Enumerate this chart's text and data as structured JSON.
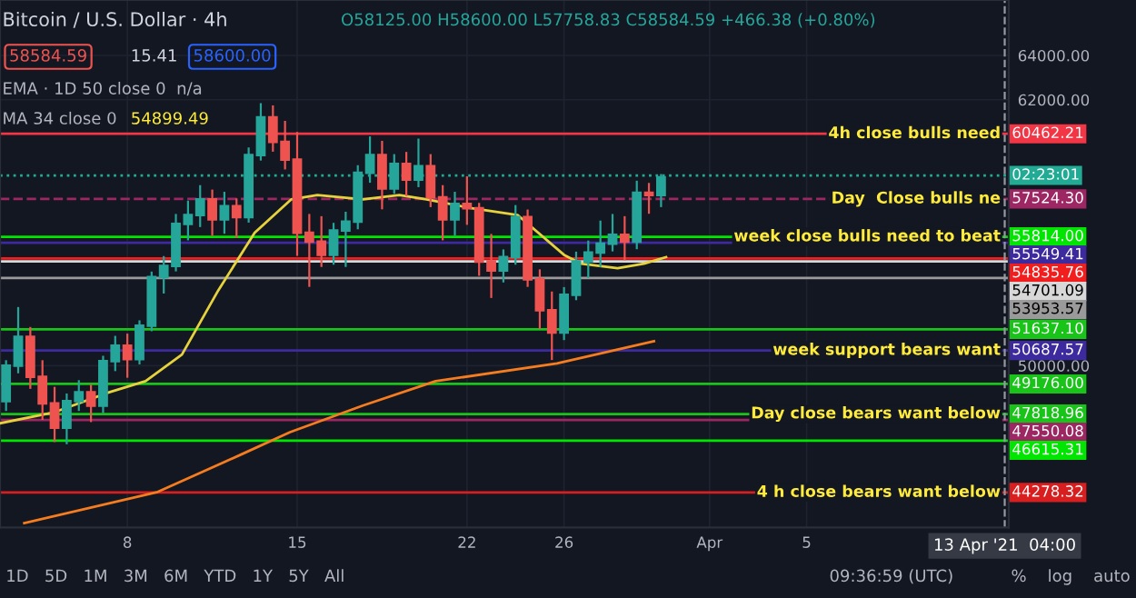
{
  "chart_data": {
    "type": "candlestick",
    "title": "Bitcoin / U.S. Dollar · 4h",
    "annotations": [
      "O58125.00 H58600.00 L57758.83 C58584.59 +466.38 (+0.80%)",
      "58584.59",
      "15.41",
      "58600.00",
      "EMA · 1D 50 close 0  n/a",
      "MA 34 close 0",
      "54899.49",
      "1D   5D   1M   3M   6M   YTD   1Y   5Y   All",
      "09:36:59 (UTC)",
      "%    log    auto",
      {
        "text": "4h close bulls need",
        "x": "2021-04-13T00:00",
        "y": 60462.21
      },
      {
        "text": "02:23:01",
        "x": "2021-04-13T08:00",
        "y": 58584.59
      },
      {
        "text": "Day  Close bulls ne",
        "x": "2021-04-13T00:00",
        "y": 57524.3
      },
      {
        "text": "week close bulls need to beat",
        "x": "2021-04-13T00:00",
        "y": 55814
      },
      {
        "text": "week support bears want",
        "x": "2021-04-13T00:00",
        "y": 50687.57
      },
      {
        "text": "Day close bears want below",
        "x": "2021-04-13T00:00",
        "y": 47818.96
      },
      {
        "text": "4 h close bears want below",
        "x": "2021-04-13T00:00",
        "y": 44278.32
      }
    ],
    "x": [
      "2021-03-03T00:00",
      "2021-03-03T12:00",
      "2021-03-04T00:00",
      "2021-03-04T12:00",
      "2021-03-05T00:00",
      "2021-03-05T12:00",
      "2021-03-06T00:00",
      "2021-03-06T12:00",
      "2021-03-07T00:00",
      "2021-03-07T12:00",
      "2021-03-08T00:00",
      "2021-03-08T12:00",
      "2021-03-09T00:00",
      "2021-03-09T12:00",
      "2021-03-10T00:00",
      "2021-03-10T12:00",
      "2021-03-11T00:00",
      "2021-03-11T12:00",
      "2021-03-12T00:00",
      "2021-03-12T12:00",
      "2021-03-13T00:00",
      "2021-03-13T12:00",
      "2021-03-14T00:00",
      "2021-03-14T12:00",
      "2021-03-15T00:00",
      "2021-03-15T12:00",
      "2021-03-16T00:00",
      "2021-03-16T12:00",
      "2021-03-17T00:00",
      "2021-03-17T12:00",
      "2021-03-18T00:00",
      "2021-03-18T12:00",
      "2021-03-19T00:00",
      "2021-03-19T12:00",
      "2021-03-20T00:00",
      "2021-03-20T12:00",
      "2021-03-21T00:00",
      "2021-03-21T12:00",
      "2021-03-22T00:00",
      "2021-03-22T12:00",
      "2021-03-23T00:00",
      "2021-03-23T12:00",
      "2021-03-24T00:00",
      "2021-03-24T12:00",
      "2021-03-25T00:00",
      "2021-03-25T12:00",
      "2021-03-26T00:00",
      "2021-03-26T12:00",
      "2021-03-27T00:00",
      "2021-03-27T12:00",
      "2021-03-28T00:00",
      "2021-03-28T12:00",
      "2021-03-29T00:00",
      "2021-03-29T12:00",
      "2021-03-30T00:00"
    ],
    "ohlc": [
      [
        48400,
        50200,
        48000,
        50000
      ],
      [
        50000,
        52600,
        49700,
        51300
      ],
      [
        51300,
        51700,
        49000,
        49500
      ],
      [
        49500,
        50200,
        47600,
        48300
      ],
      [
        48300,
        49000,
        46600,
        47200
      ],
      [
        47200,
        48700,
        46500,
        48400
      ],
      [
        48400,
        49300,
        48000,
        48800
      ],
      [
        48800,
        49100,
        47500,
        48200
      ],
      [
        48200,
        50400,
        47900,
        50200
      ],
      [
        50200,
        51300,
        49800,
        50900
      ],
      [
        50900,
        51400,
        49500,
        50300
      ],
      [
        50300,
        52000,
        50100,
        51800
      ],
      [
        51800,
        54200,
        51600,
        54000
      ],
      [
        54000,
        54900,
        53300,
        54500
      ],
      [
        54500,
        56800,
        54300,
        56400
      ],
      [
        56400,
        57400,
        55700,
        56800
      ],
      [
        56800,
        58100,
        56300,
        57500
      ],
      [
        57500,
        57900,
        55900,
        56600
      ],
      [
        56600,
        57800,
        56000,
        57200
      ],
      [
        57200,
        57500,
        55800,
        56700
      ],
      [
        56700,
        59800,
        56500,
        59500
      ],
      [
        59500,
        61800,
        59300,
        61200
      ],
      [
        61200,
        61700,
        59700,
        60100
      ],
      [
        60100,
        61000,
        58900,
        59300
      ],
      [
        59300,
        60500,
        55000,
        56000
      ],
      [
        56000,
        56800,
        53600,
        55600
      ],
      [
        55600,
        56700,
        54500,
        55000
      ],
      [
        55000,
        56400,
        54600,
        56100
      ],
      [
        56100,
        56900,
        54500,
        56500
      ],
      [
        56500,
        59000,
        56200,
        58700
      ],
      [
        58700,
        60300,
        58300,
        59500
      ],
      [
        59500,
        60100,
        57100,
        58000
      ],
      [
        58000,
        59500,
        57800,
        59100
      ],
      [
        59100,
        59600,
        57700,
        58400
      ],
      [
        58400,
        60200,
        58100,
        59000
      ],
      [
        59000,
        59500,
        57200,
        57600
      ],
      [
        57600,
        58100,
        55700,
        56600
      ],
      [
        56600,
        57800,
        55900,
        57300
      ],
      [
        57300,
        58500,
        56400,
        57100
      ],
      [
        57100,
        57300,
        54100,
        54700
      ],
      [
        54700,
        55900,
        53100,
        54300
      ],
      [
        54300,
        55200,
        53800,
        54900
      ],
      [
        54900,
        57200,
        54600,
        56700
      ],
      [
        56700,
        57000,
        53600,
        53900
      ],
      [
        53900,
        54300,
        51700,
        52500
      ],
      [
        52500,
        53300,
        50300,
        51500
      ],
      [
        51500,
        53500,
        51200,
        53200
      ],
      [
        53200,
        55100,
        53000,
        54700
      ],
      [
        54700,
        55600,
        54000,
        55100
      ],
      [
        55100,
        56500,
        54500,
        55500
      ],
      [
        55500,
        56800,
        55200,
        55900
      ],
      [
        55900,
        56700,
        54800,
        55600
      ],
      [
        55600,
        58300,
        55300,
        57800
      ],
      [
        57800,
        58200,
        56900,
        57700
      ],
      [
        57700,
        58600,
        57200,
        58500
      ]
    ],
    "colors": [
      "#26a69a",
      "#26a69a",
      "#ef5350",
      "#ef5350",
      "#ef5350",
      "#26a69a",
      "#26a69a",
      "#ef5350",
      "#26a69a",
      "#26a69a",
      "#ef5350",
      "#26a69a",
      "#26a69a",
      "#26a69a",
      "#26a69a",
      "#26a69a",
      "#26a69a",
      "#ef5350",
      "#26a69a",
      "#ef5350",
      "#26a69a",
      "#26a69a",
      "#ef5350",
      "#ef5350",
      "#ef5350",
      "#ef5350",
      "#ef5350",
      "#26a69a",
      "#26a69a",
      "#26a69a",
      "#26a69a",
      "#ef5350",
      "#26a69a",
      "#ef5350",
      "#26a69a",
      "#ef5350",
      "#ef5350",
      "#26a69a",
      "#ef5350",
      "#ef5350",
      "#ef5350",
      "#26a69a",
      "#26a69a",
      "#ef5350",
      "#ef5350",
      "#ef5350",
      "#26a69a",
      "#26a69a",
      "#26a69a",
      "#26a69a",
      "#26a69a",
      "#ef5350",
      "#26a69a",
      "#ef5350",
      "#26a69a"
    ],
    "series": [
      {
        "type": "line",
        "color": "#e6d23c",
        "x": [
          "2021-03-02T18:00",
          "2021-03-05T00:00",
          "2021-03-07T06:00",
          "2021-03-08T18:00",
          "2021-03-10T06:00",
          "2021-03-11T18:00",
          "2021-03-13T06:00",
          "2021-03-14T18:00",
          "2021-03-15T20:00",
          "2021-03-17T17:00",
          "2021-03-19T05:00",
          "2021-03-20T08:00",
          "2021-03-22T05:00",
          "2021-03-24T02:00",
          "2021-03-26T00:00",
          "2021-03-26T17:00",
          "2021-03-28T05:00",
          "2021-03-29T07:00",
          "2021-03-30T05:00"
        ],
        "values": [
          47400,
          47900,
          48800,
          49300,
          50500,
          53400,
          56000,
          57500,
          57700,
          57500,
          57700,
          57500,
          57100,
          56800,
          55000,
          54600,
          54400,
          54600,
          54900
        ]
      },
      {
        "type": "line",
        "color": "#f57c1f",
        "x": [
          "2021-03-03T18:00",
          "2021-03-09T06:00",
          "2021-03-12T17:00",
          "2021-03-14T17:00",
          "2021-03-17T17:00",
          "2021-03-20T17:00",
          "2021-03-25T17:00",
          "2021-03-29T17:00"
        ],
        "values": [
          42900,
          44300,
          46000,
          47000,
          48200,
          49300,
          50100,
          51100
        ]
      }
    ],
    "ref_lines": [
      {
        "axis": "y",
        "value": 60462.21,
        "label": "60462.21",
        "color": "#f23645"
      },
      {
        "axis": "y",
        "value": 58584.59,
        "color": "#22ab94",
        "line_style": "dotted"
      },
      {
        "axis": "y",
        "value": 57524.3,
        "label": "57524.30",
        "color": "#9c2763",
        "line_style": "dashed"
      },
      {
        "axis": "y",
        "value": 55814.0,
        "label": "55814.00",
        "color": "#00e600"
      },
      {
        "axis": "y",
        "value": 55549.41,
        "label": "55549.41",
        "color": "#3c2a9e"
      },
      {
        "axis": "y",
        "value": 54835.76,
        "label": "54835.76",
        "color": "#f21e1e"
      },
      {
        "axis": "y",
        "value": 54701.09,
        "label": "54701.09",
        "color": "#d8d8d8"
      },
      {
        "axis": "y",
        "value": 53953.57,
        "label": "53953.57",
        "color": "#9a9a9a"
      },
      {
        "axis": "y",
        "value": 51637.1,
        "label": "51637.10",
        "color": "#18c418"
      },
      {
        "axis": "y",
        "value": 50687.57,
        "label": "50687.57",
        "color": "#3c2a9e"
      },
      {
        "axis": "y",
        "value": 49176.0,
        "label": "49176.00",
        "color": "#18c418"
      },
      {
        "axis": "y",
        "value": 47818.96,
        "label": "47818.96",
        "color": "#18c418"
      },
      {
        "axis": "y",
        "value": 47550.08,
        "label": "47550.08",
        "color": "#9c2763"
      },
      {
        "axis": "y",
        "value": 46615.31,
        "label": "46615.31",
        "color": "#00e600"
      },
      {
        "axis": "y",
        "value": 44278.32,
        "label": "44278.32",
        "color": "#d81e1e"
      },
      {
        "axis": "x",
        "value": "2021-04-13T04:00",
        "label": "13 Apr '21  04:00",
        "color": "#9598a1",
        "line_style": "dashed"
      }
    ],
    "xlim": [
      "2021-03-02T18:00",
      "2021-04-13T08:00"
    ],
    "xticks": [
      {
        "value": "2021-03-08",
        "label": "8"
      },
      {
        "value": "2021-03-15",
        "label": "15"
      },
      {
        "value": "2021-03-22",
        "label": "22"
      },
      {
        "value": "2021-03-26",
        "label": "26"
      },
      {
        "value": "2021-04-01",
        "label": "Apr"
      },
      {
        "value": "2021-04-05",
        "label": "5"
      }
    ],
    "ylim": [
      42700,
      66500
    ],
    "yticks": [
      {
        "value": 50000,
        "label": "50000.00"
      },
      {
        "value": 62000,
        "label": "62000.00"
      },
      {
        "value": 64000,
        "label": "64000.00"
      }
    ],
    "grid": true
  }
}
